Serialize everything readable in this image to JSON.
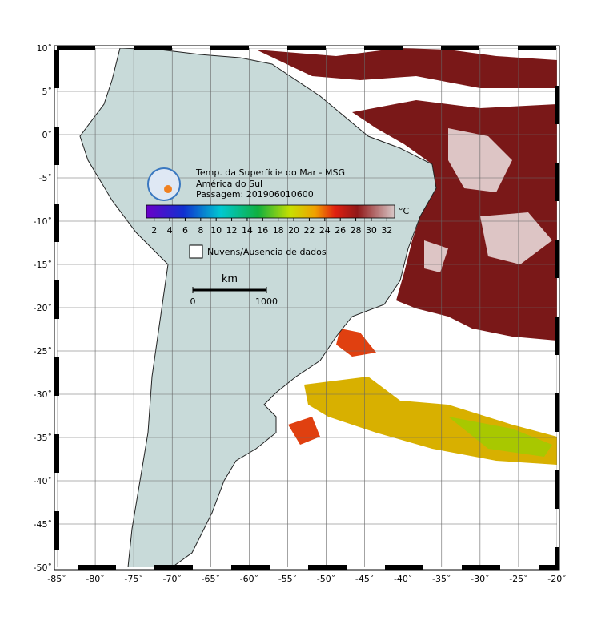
{
  "map": {
    "xlim": [
      -85,
      -20
    ],
    "ylim": [
      -50,
      10
    ],
    "xticks": [
      {
        "value": -85,
        "label": "-85˚"
      },
      {
        "value": -80,
        "label": "-80˚"
      },
      {
        "value": -75,
        "label": "-75˚"
      },
      {
        "value": -70,
        "label": "-70˚"
      },
      {
        "value": -65,
        "label": "-65˚"
      },
      {
        "value": -60,
        "label": "-60˚"
      },
      {
        "value": -55,
        "label": "-55˚"
      },
      {
        "value": -50,
        "label": "-50˚"
      },
      {
        "value": -45,
        "label": "-45˚"
      },
      {
        "value": -40,
        "label": "-40˚"
      },
      {
        "value": -35,
        "label": "-35˚"
      },
      {
        "value": -30,
        "label": "-30˚"
      },
      {
        "value": -25,
        "label": "-25˚"
      },
      {
        "value": -20,
        "label": "-20˚"
      }
    ],
    "yticks": [
      {
        "value": 10,
        "label": "10˚"
      },
      {
        "value": 5,
        "label": "5˚"
      },
      {
        "value": 0,
        "label": "0˚"
      },
      {
        "value": -5,
        "label": "-5˚"
      },
      {
        "value": -10,
        "label": "-10˚"
      },
      {
        "value": -15,
        "label": "-15˚"
      },
      {
        "value": -20,
        "label": "-20˚"
      },
      {
        "value": -25,
        "label": "-25˚"
      },
      {
        "value": -30,
        "label": "-30˚"
      },
      {
        "value": -35,
        "label": "-35˚"
      },
      {
        "value": -40,
        "label": "-40˚"
      },
      {
        "value": -45,
        "label": "-45˚"
      },
      {
        "value": -50,
        "label": "-50˚"
      }
    ]
  },
  "legend": {
    "title_lines": [
      "Temp. da Superfície do Mar - MSG",
      "América do Sul",
      "Passagem: 201906010600"
    ],
    "colorbar": {
      "lim": [
        1,
        33
      ],
      "ticks": [
        2,
        4,
        6,
        8,
        10,
        12,
        14,
        16,
        18,
        20,
        22,
        24,
        26,
        28,
        30,
        32
      ],
      "unit": "°C"
    },
    "no_data": "Nuvens/Ausencia de dados",
    "scale": {
      "unit": "km",
      "ticks": [
        0,
        1000
      ]
    }
  }
}
